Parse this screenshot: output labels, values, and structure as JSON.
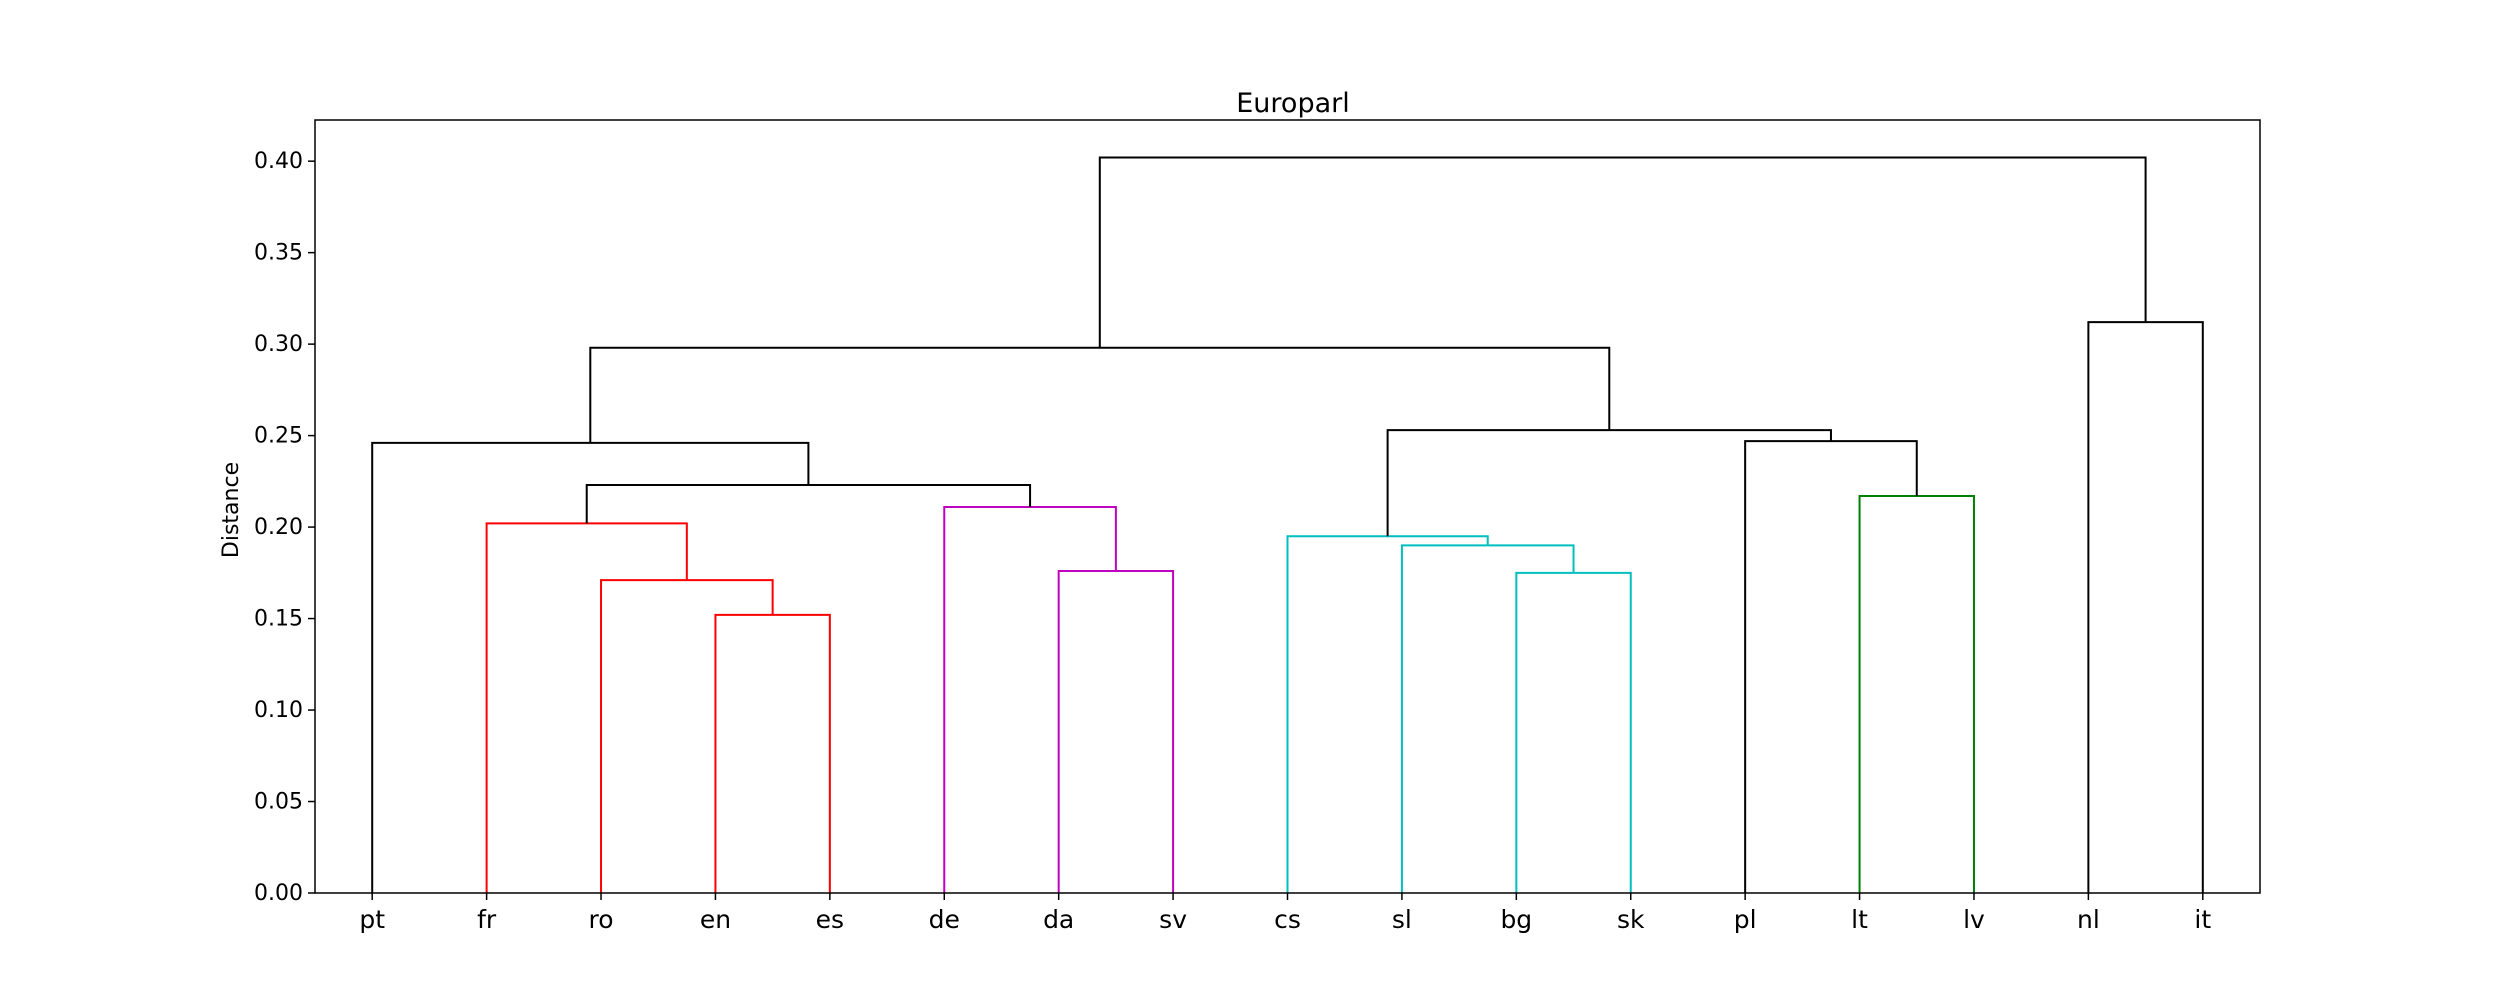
{
  "chart_data": {
    "type": "dendrogram",
    "title": "Europarl",
    "xlabel": "",
    "ylabel": "Distance",
    "ylim": [
      0,
      0.4225
    ],
    "yticks": [
      "0.00",
      "0.05",
      "0.10",
      "0.15",
      "0.20",
      "0.25",
      "0.30",
      "0.35",
      "0.40"
    ],
    "leaves": [
      "pt",
      "fr",
      "ro",
      "en",
      "es",
      "de",
      "da",
      "sv",
      "cs",
      "sl",
      "bg",
      "sk",
      "pl",
      "lt",
      "lv",
      "nl",
      "it"
    ],
    "colors": {
      "red": "#ff0000",
      "magenta": "#bf00bf",
      "cyan": "#00bfbf",
      "green": "#008000",
      "black": "#000000"
    },
    "merges": [
      {
        "id": "en-es",
        "left": "en",
        "right": "es",
        "height": 0.152,
        "color": "red"
      },
      {
        "id": "ro-en-es",
        "left": "ro",
        "right": "en-es",
        "height": 0.171,
        "color": "red"
      },
      {
        "id": "fr-group",
        "left": "fr",
        "right": "ro-en-es",
        "height": 0.202,
        "color": "red"
      },
      {
        "id": "da-sv",
        "left": "da",
        "right": "sv",
        "height": 0.176,
        "color": "magenta"
      },
      {
        "id": "de-group",
        "left": "de",
        "right": "da-sv",
        "height": 0.211,
        "color": "magenta"
      },
      {
        "id": "romance-germanic",
        "left": "fr-group",
        "right": "de-group",
        "height": 0.223,
        "color": "black"
      },
      {
        "id": "pt-group",
        "left": "pt",
        "right": "romance-germanic",
        "height": 0.246,
        "color": "black"
      },
      {
        "id": "bg-sk",
        "left": "bg",
        "right": "sk",
        "height": 0.175,
        "color": "cyan"
      },
      {
        "id": "sl-group",
        "left": "sl",
        "right": "bg-sk",
        "height": 0.19,
        "color": "cyan"
      },
      {
        "id": "cs-group",
        "left": "cs",
        "right": "sl-group",
        "height": 0.195,
        "color": "cyan"
      },
      {
        "id": "lt-lv",
        "left": "lt",
        "right": "lv",
        "height": 0.217,
        "color": "green"
      },
      {
        "id": "pl-group",
        "left": "pl",
        "right": "lt-lv",
        "height": 0.247,
        "color": "black"
      },
      {
        "id": "slavic-baltic",
        "left": "cs-group",
        "right": "pl-group",
        "height": 0.253,
        "color": "black"
      },
      {
        "id": "main-group",
        "left": "pt-group",
        "right": "slavic-baltic",
        "height": 0.298,
        "color": "black"
      },
      {
        "id": "nl-it",
        "left": "nl",
        "right": "it",
        "height": 0.312,
        "color": "black"
      },
      {
        "id": "root",
        "left": "main-group",
        "right": "nl-it",
        "height": 0.402,
        "color": "black"
      }
    ]
  }
}
